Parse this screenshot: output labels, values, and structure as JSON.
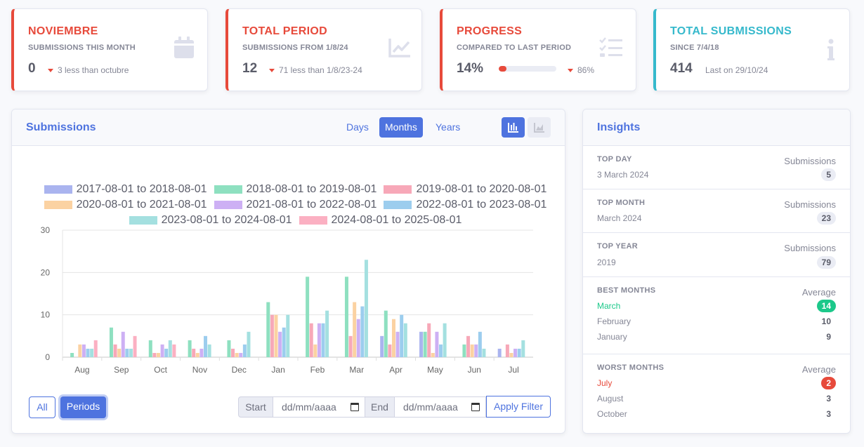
{
  "stats": [
    {
      "title": "NOVIEMBRE",
      "subtitle": "SUBMISSIONS THIS MONTH",
      "value": "0",
      "delta": "3 less than octubre",
      "icon": "calendar-icon"
    },
    {
      "title": "TOTAL PERIOD",
      "subtitle": "SUBMISSIONS FROM 1/8/24",
      "value": "12",
      "delta": "71 less than 1/8/23-24",
      "icon": "chart-line-icon"
    },
    {
      "title": "PROGRESS",
      "subtitle": "COMPARED TO LAST PERIOD",
      "value": "14%",
      "progress": 0.14,
      "delta": "86%",
      "icon": "tasks-icon"
    },
    {
      "title": "TOTAL SUBMISSIONS",
      "subtitle": "SINCE 7/4/18",
      "value": "414",
      "delta": "Last on 29/10/24",
      "icon": "info-icon"
    }
  ],
  "submissions": {
    "title": "Submissions",
    "ranges": [
      "Days",
      "Months",
      "Years"
    ],
    "active_range": "Months",
    "chart_view_buttons": [
      "bar-chart-icon",
      "area-chart-icon"
    ],
    "filter_buttons": {
      "all": "All",
      "periods": "Periods"
    },
    "start_label": "Start",
    "end_label": "End",
    "date_placeholder": "dd/mm/aaaa",
    "apply_label": "Apply Filter"
  },
  "chart_data": {
    "type": "bar",
    "categories": [
      "Aug",
      "Sep",
      "Oct",
      "Nov",
      "Dec",
      "Jan",
      "Feb",
      "Mar",
      "Apr",
      "May",
      "Jun",
      "Jul"
    ],
    "ylim": [
      0,
      30
    ],
    "yticks": [
      0,
      10,
      20,
      30
    ],
    "grid": true,
    "legend_position": "top",
    "series": [
      {
        "name": "2017-08-01 to 2018-08-01",
        "color": "#aab4ef",
        "values": [
          0,
          0,
          0,
          0,
          0,
          0,
          0,
          0,
          5,
          6,
          0,
          2
        ]
      },
      {
        "name": "2018-08-01 to 2019-08-01",
        "color": "#8ee0c0",
        "values": [
          1,
          7,
          4,
          4,
          4,
          13,
          19,
          19,
          11,
          6,
          3,
          0
        ]
      },
      {
        "name": "2019-08-01 to 2020-08-01",
        "color": "#f7a8b8",
        "values": [
          0,
          3,
          1,
          2,
          2,
          10,
          8,
          5,
          3,
          8,
          5,
          3
        ]
      },
      {
        "name": "2020-08-01 to 2021-08-01",
        "color": "#fbd2a2",
        "values": [
          3,
          2,
          1,
          1,
          1,
          10,
          3,
          13,
          9,
          1,
          3,
          1
        ]
      },
      {
        "name": "2021-08-01 to 2022-08-01",
        "color": "#cdb0f4",
        "values": [
          3,
          6,
          3,
          2,
          1,
          6,
          8,
          9,
          6,
          6,
          3,
          2
        ]
      },
      {
        "name": "2022-08-01 to 2023-08-01",
        "color": "#9ccdee",
        "values": [
          2,
          2,
          2,
          5,
          3,
          7,
          8,
          12,
          10,
          3,
          6,
          2
        ]
      },
      {
        "name": "2023-08-01 to 2024-08-01",
        "color": "#a4e0e0",
        "values": [
          2,
          2,
          4,
          3,
          6,
          10,
          11,
          23,
          8,
          8,
          2,
          4
        ]
      },
      {
        "name": "2024-08-01 to 2025-08-01",
        "color": "#fbb0c2",
        "values": [
          4,
          5,
          3,
          0,
          0,
          0,
          0,
          0,
          0,
          0,
          0,
          0
        ]
      }
    ]
  },
  "insights": {
    "title": "Insights",
    "top_day": {
      "label": "TOP DAY",
      "value": "3 March 2024",
      "metric": "Submissions",
      "count": "5"
    },
    "top_month": {
      "label": "TOP MONTH",
      "value": "March 2024",
      "metric": "Submissions",
      "count": "23"
    },
    "top_year": {
      "label": "TOP YEAR",
      "value": "2019",
      "metric": "Submissions",
      "count": "79"
    },
    "best_months": {
      "label": "BEST MONTHS",
      "metric": "Average",
      "items": [
        {
          "month": "March",
          "avg": "14"
        },
        {
          "month": "February",
          "avg": "10"
        },
        {
          "month": "January",
          "avg": "9"
        }
      ]
    },
    "worst_months": {
      "label": "WORST MONTHS",
      "metric": "Average",
      "items": [
        {
          "month": "July",
          "avg": "2"
        },
        {
          "month": "August",
          "avg": "3"
        },
        {
          "month": "October",
          "avg": "3"
        }
      ]
    }
  }
}
